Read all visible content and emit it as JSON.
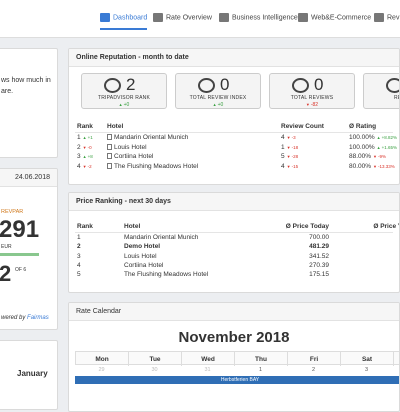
{
  "nav": [
    "Dashboard",
    "Rate Overview",
    "Business Intelligence",
    "Web&E-Commerce",
    "Rev"
  ],
  "left": {
    "intro": [
      "ws how much in",
      "are."
    ],
    "date": "24.06.2018",
    "kpi_label": "REVPAR",
    "kpi_value": "291",
    "kpi_unit": "EUR",
    "rank": "2",
    "rank_of": "OF 6",
    "powered": "wered by",
    "powered_brand": "Fairmas",
    "month": "January"
  },
  "reputation": {
    "title": "Online Reputation - month to date",
    "kpis": [
      {
        "value": "2",
        "label": "TRIPADVISOR RANK",
        "change": "+0"
      },
      {
        "value": "0",
        "label": "TOTAL REVIEW INDEX",
        "change": "+0"
      },
      {
        "value": "0",
        "label": "TOTAL REVIEWS",
        "change": "-82"
      },
      {
        "label": "RECOMM",
        "change": "+0"
      }
    ],
    "columns": [
      "Rank",
      "Hotel",
      "Review Count",
      "Ø Rating"
    ],
    "rows": [
      {
        "rank": "1",
        "rank_change": "+1",
        "hotel": "Mandarin Oriental Munich",
        "reviews": "4",
        "reviews_change": "-3",
        "rating": "100.00%",
        "rating_change": "+8.82%"
      },
      {
        "rank": "2",
        "rank_change": "-0",
        "hotel": "Louis Hotel",
        "reviews": "1",
        "reviews_change": "-18",
        "rating": "100.00%",
        "rating_change": "+1.65%"
      },
      {
        "rank": "3",
        "rank_change": "+8",
        "hotel": "Cortiina Hotel",
        "reviews": "5",
        "reviews_change": "-28",
        "rating": "88.00%",
        "rating_change": "-9%"
      },
      {
        "rank": "4",
        "rank_change": "-2",
        "hotel": "The Flushing Meadows Hotel",
        "reviews": "4",
        "reviews_change": "-15",
        "rating": "80.00%",
        "rating_change": "-13.33%"
      }
    ]
  },
  "price_ranking": {
    "title": "Price Ranking - next 30 days",
    "columns": [
      "Rank",
      "Hotel",
      "Ø Price Today",
      "Ø Price Yes"
    ],
    "rows": [
      {
        "rank": "1",
        "hotel": "Mandarin Oriental Munich",
        "price": "700.00"
      },
      {
        "rank": "2",
        "hotel": "Demo Hotel",
        "price": "481.29",
        "own_hotel": true
      },
      {
        "rank": "3",
        "hotel": "Louis Hotel",
        "price": "341.52"
      },
      {
        "rank": "4",
        "hotel": "Cortiina Hotel",
        "price": "270.39"
      },
      {
        "rank": "5",
        "hotel": "The Flushing Meadows Hotel",
        "price": "175.15"
      }
    ]
  },
  "calendar": {
    "title": "Rate Calendar",
    "month": "November 2018",
    "weekdays": [
      "Mon",
      "Tue",
      "Wed",
      "Thu",
      "Fri",
      "Sat"
    ],
    "prev_month_days": [
      "29",
      "30",
      "31"
    ],
    "days": [
      "1",
      "2",
      "3"
    ],
    "event": "Herbstferien BAY"
  }
}
